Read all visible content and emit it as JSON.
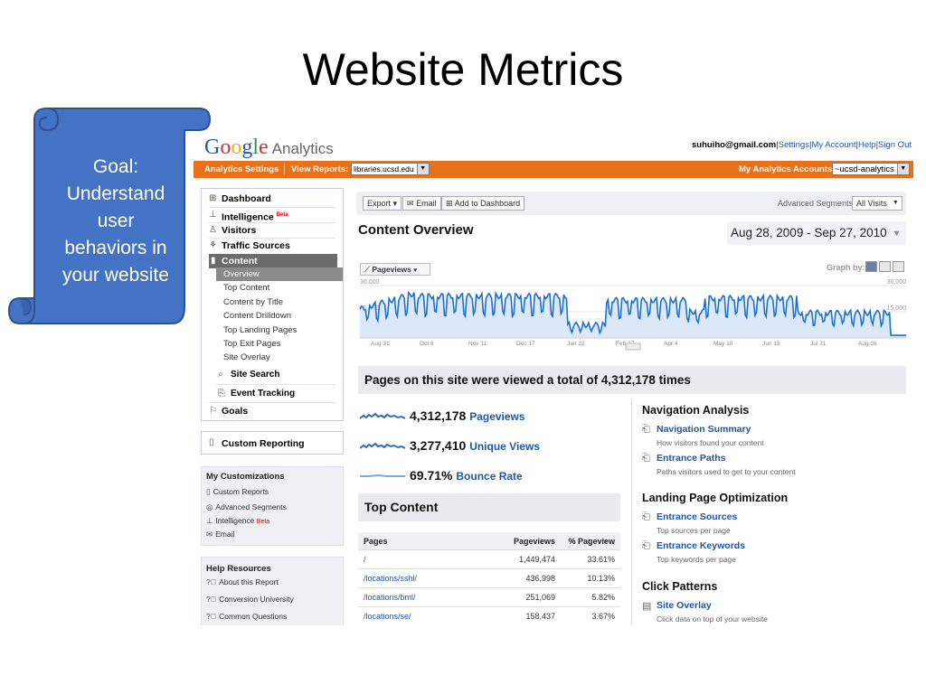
{
  "slide": {
    "title": "Website Metrics",
    "callout": {
      "line1": "Goal:",
      "line2": "Understand",
      "line3": "user",
      "line4": "behaviors in",
      "line5": "your website"
    }
  },
  "colors": {
    "accent": "#e8721c",
    "link": "#2255aa",
    "scroll": "#4472c4",
    "chart_line": "#1c6fd4"
  },
  "ga": {
    "logo_google": [
      "G",
      "o",
      "o",
      "g",
      "l",
      "e"
    ],
    "logo_analytics": "Analytics",
    "user": {
      "email": "suhuiho@gmail.com",
      "links": [
        "Settings",
        "My Account",
        "Help",
        "Sign Out"
      ],
      "sep": "|"
    },
    "orange_bar": {
      "settings": "Analytics Settings",
      "view_reports": "View Reports:",
      "profile": "libraries.ucsd.edu",
      "accounts_label": "My Analytics Accounts:",
      "account": "~ucsd-analytics"
    },
    "nav": {
      "dashboard": "Dashboard",
      "intelligence": "Intelligence",
      "beta": "Beta",
      "visitors": "Visitors",
      "traffic": "Traffic Sources",
      "content": "Content",
      "subs": [
        "Overview",
        "Top Content",
        "Content by Title",
        "Content Drilldown",
        "Top Landing Pages",
        "Top Exit Pages",
        "Site Overlay"
      ],
      "site_search": "Site Search",
      "event_tracking": "Event Tracking",
      "goals": "Goals",
      "custom_reporting": "Custom Reporting"
    },
    "my_customizations": {
      "title": "My Customizations",
      "items": [
        "Custom Reports",
        "Advanced Segments",
        "Intelligence",
        "Email"
      ],
      "beta": "Beta"
    },
    "help": {
      "title": "Help Resources",
      "items": [
        "About this Report",
        "Conversion University",
        "Common Questions"
      ]
    },
    "toolbar": {
      "export": "Export",
      "email": "Email",
      "dashboard": "Add to Dashboard",
      "adv_label": "Advanced Segments:",
      "adv_value": "All Visits"
    },
    "report_title": "Content Overview",
    "date_range": "Aug 28, 2009 - Sep 27, 2010",
    "graph": {
      "metric": "Pageviews",
      "graph_by": "Graph by:",
      "y_top": "30,000",
      "y_mid": "15,000",
      "ticks": [
        "Aug 31",
        "Oct 6",
        "Nov 11",
        "Dec 17",
        "Jan 22",
        "Feb 27",
        "Apr 4",
        "May 10",
        "Jun 15",
        "Jul 21",
        "Aug 26"
      ]
    },
    "total_text": "Pages on this site were viewed a total of 4,312,178 times",
    "metrics": [
      {
        "value": "4,312,178",
        "label": "Pageviews"
      },
      {
        "value": "3,277,410",
        "label": "Unique Views"
      },
      {
        "value": "69.71%",
        "label": "Bounce Rate"
      }
    ],
    "top_content": {
      "title": "Top Content",
      "headers": [
        "Pages",
        "Pageviews",
        "% Pageview"
      ],
      "rows": [
        [
          "/",
          "1,449,474",
          "33.61%"
        ],
        [
          "/locations/sshl/",
          "436,998",
          "10.13%"
        ],
        [
          "/locations/bml/",
          "251,069",
          "5.82%"
        ],
        [
          "/locations/se/",
          "158,437",
          "3.67%"
        ]
      ]
    },
    "right": {
      "nav_title": "Navigation Analysis",
      "nav_summary": "Navigation Summary",
      "nav_summary_d": "How visitors found your content",
      "entrance_paths": "Entrance Paths",
      "entrance_paths_d": "Paths visitors used to get to your content",
      "landing_title": "Landing Page Optimization",
      "entrance_sources": "Entrance Sources",
      "entrance_sources_d": "Top sources per page",
      "entrance_keywords": "Entrance Keywords",
      "entrance_keywords_d": "Top keywords per page",
      "click_title": "Click Patterns",
      "site_overlay": "Site Overlay",
      "site_overlay_d": "Click data on top of your website"
    }
  }
}
